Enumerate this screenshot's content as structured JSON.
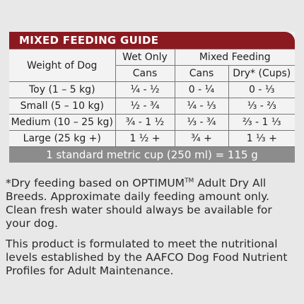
{
  "header": {
    "title": "MIXED FEEDING GUIDE"
  },
  "table": {
    "columns": {
      "weight": "Weight of Dog",
      "wet": "Wet Only",
      "mixed": "Mixed Feeding",
      "sub": [
        "Cans",
        "Cans",
        "Dry* (Cups)"
      ]
    },
    "rows": [
      [
        "Toy (1 – 5 kg)",
        "¼ - ½",
        "0 - ¼",
        "0 - ⅓"
      ],
      [
        "Small (5 – 10 kg)",
        "½ - ¾",
        "¼ - ⅓",
        "⅓ - ⅔"
      ],
      [
        "Medium (10 – 25 kg)",
        "¾ - 1 ½",
        "⅓ - ¾",
        "⅔ - 1 ⅓"
      ],
      [
        "Large (25 kg +)",
        "1 ½ +",
        "¾ +",
        "1 ⅓ +"
      ]
    ],
    "footer": "1 standard metric cup (250 ml) = 115 g"
  },
  "notes": [
    {
      "before": "*Dry feeding based on OPTIMUM",
      "mark": "TM",
      "after": " Adult Dry All Breeds.  Approximate daily feeding amount only. Clean fresh water should always be available for your dog."
    },
    "This product is formulated to meet the nutritional levels established by the AAFCO Dog Food Nutrient Profiles for Adult Maintenance."
  ]
}
